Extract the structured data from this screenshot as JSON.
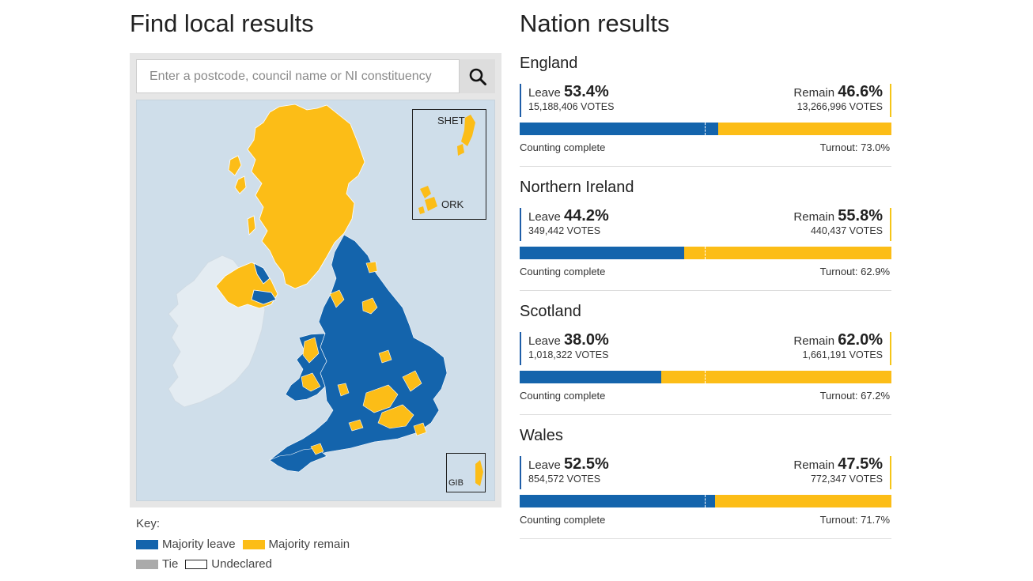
{
  "left": {
    "title": "Find local results",
    "search": {
      "placeholder": "Enter a postcode, council name or NI constituency",
      "value": ""
    },
    "insets": {
      "shetland": "SHET",
      "orkney": "ORK",
      "gibraltar": "GIB"
    },
    "key": {
      "title": "Key:",
      "items": [
        {
          "label": "Majority leave",
          "color": "#1464ac"
        },
        {
          "label": "Majority remain",
          "color": "#fcbd17"
        },
        {
          "label": "Tie",
          "color": "#aaaaaa"
        },
        {
          "label": "Undeclared",
          "color": "#ffffff"
        }
      ]
    },
    "colors": {
      "leave": "#1464ac",
      "remain": "#fcbd17",
      "sea": "#cfdeea",
      "ireland": "#e4ecf2"
    }
  },
  "right": {
    "title": "Nation results",
    "nations": [
      {
        "name": "England",
        "leave_label": "Leave",
        "leave_pct": "53.4%",
        "leave_votes": "15,188,406 VOTES",
        "remain_label": "Remain",
        "remain_pct": "46.6%",
        "remain_votes": "13,266,996 VOTES",
        "leave_share": 53.4,
        "status": "Counting complete",
        "turnout": "Turnout: 73.0%"
      },
      {
        "name": "Northern Ireland",
        "leave_label": "Leave",
        "leave_pct": "44.2%",
        "leave_votes": "349,442 VOTES",
        "remain_label": "Remain",
        "remain_pct": "55.8%",
        "remain_votes": "440,437 VOTES",
        "leave_share": 44.2,
        "status": "Counting complete",
        "turnout": "Turnout: 62.9%"
      },
      {
        "name": "Scotland",
        "leave_label": "Leave",
        "leave_pct": "38.0%",
        "leave_votes": "1,018,322 VOTES",
        "remain_label": "Remain",
        "remain_pct": "62.0%",
        "remain_votes": "1,661,191 VOTES",
        "leave_share": 38.0,
        "status": "Counting complete",
        "turnout": "Turnout: 67.2%"
      },
      {
        "name": "Wales",
        "leave_label": "Leave",
        "leave_pct": "52.5%",
        "leave_votes": "854,572 VOTES",
        "remain_label": "Remain",
        "remain_pct": "47.5%",
        "remain_votes": "772,347 VOTES",
        "leave_share": 52.5,
        "status": "Counting complete",
        "turnout": "Turnout: 71.7%"
      }
    ]
  }
}
